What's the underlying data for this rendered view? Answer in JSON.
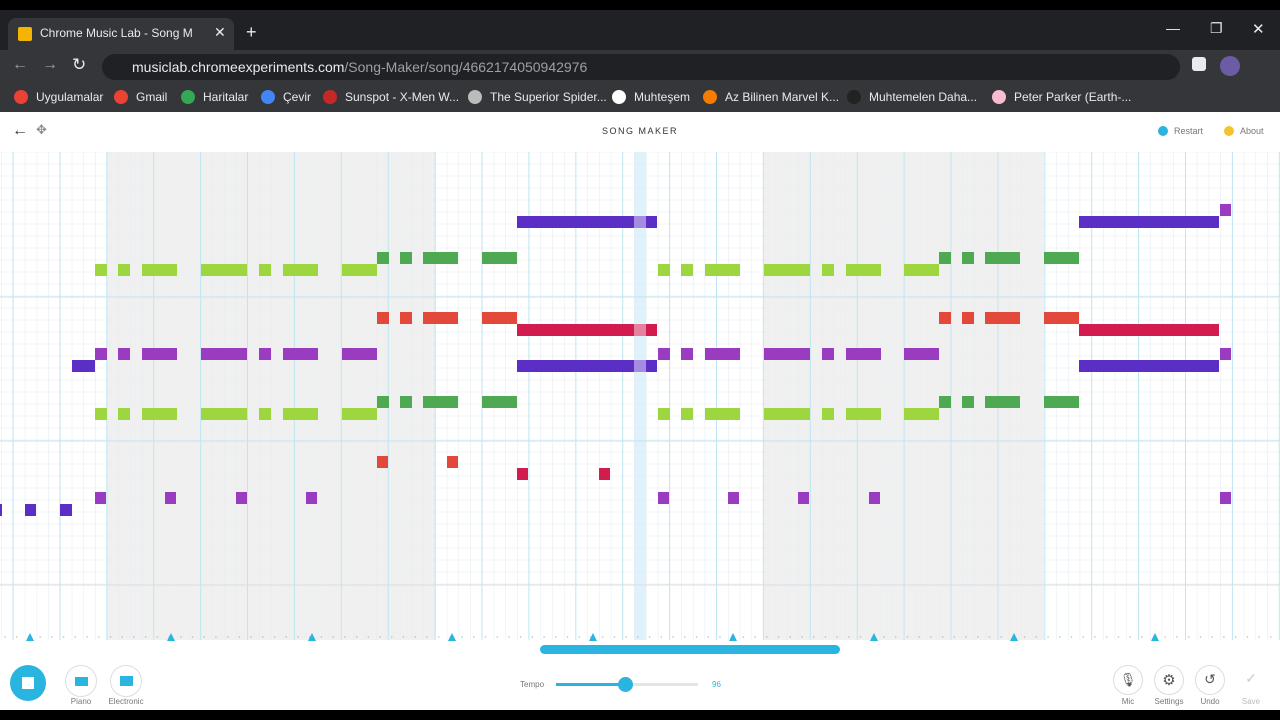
{
  "tab": {
    "title": "Chrome Music Lab - Song M"
  },
  "address": {
    "host": "musiclab.chromeexperiments.com",
    "path": "/Song-Maker/song/4662174050942976"
  },
  "bookmarks": [
    "Uygulamalar",
    "Gmail",
    "Haritalar",
    "Çevir",
    "Sunspot - X-Men W...",
    "The Superior Spider...",
    "Muhteşem",
    "Az Bilinen Marvel K...",
    "Muhtemelen Daha...",
    "Peter Parker (Earth-..."
  ],
  "app": {
    "title": "SONG MAKER",
    "restart": "Restart",
    "about": "About"
  },
  "controls": {
    "piano": "Piano",
    "electronic": "Electronic",
    "tempo_label": "Tempo",
    "tempo_value": 96,
    "mic": "Mic",
    "settings": "Settings",
    "undo": "Undo",
    "save": "Save"
  }
}
